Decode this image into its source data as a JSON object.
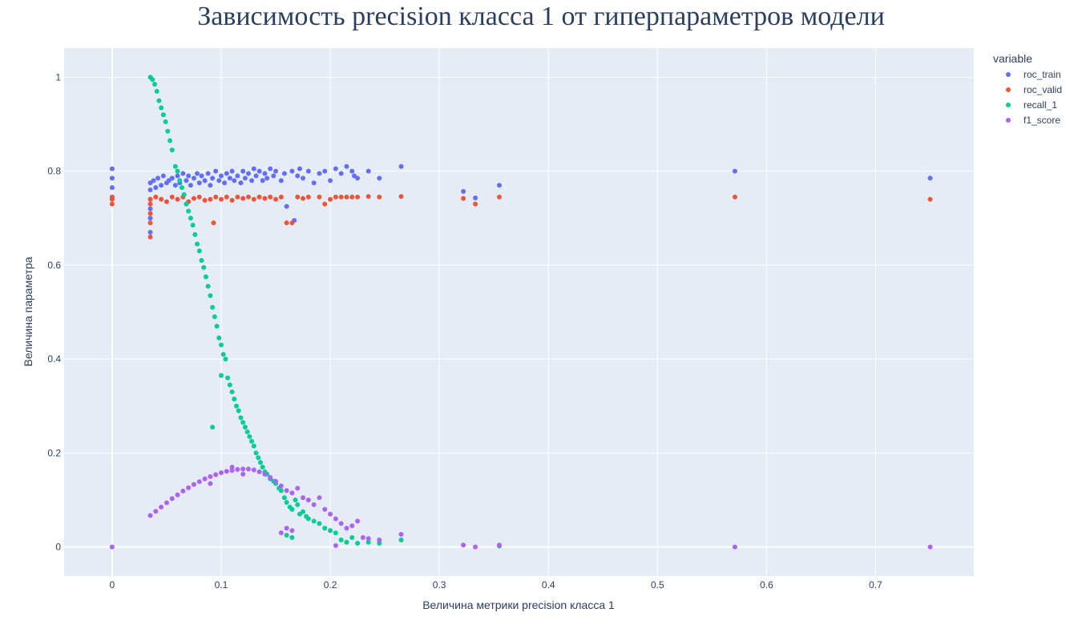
{
  "chart_data": {
    "type": "scatter",
    "title": "Зависимость precision класса 1 от гиперпараметров модели",
    "xlabel": "Величина метрики precision класса 1",
    "ylabel": "Величина параметра",
    "xlim": [
      -0.044,
      0.79
    ],
    "ylim": [
      -0.062,
      1.062
    ],
    "x_ticks": [
      0,
      0.1,
      0.2,
      0.3,
      0.4,
      0.5,
      0.6,
      0.7
    ],
    "x_tick_labels": [
      "0",
      "0.1",
      "0.2",
      "0.3",
      "0.4",
      "0.5",
      "0.6",
      "0.7"
    ],
    "y_ticks": [
      0,
      0.2,
      0.4,
      0.6,
      0.8,
      1
    ],
    "y_tick_labels": [
      "0",
      "0.2",
      "0.4",
      "0.6",
      "0.8",
      "1"
    ],
    "grid": true,
    "legend": {
      "title": "variable",
      "position": "right"
    },
    "series": [
      {
        "name": "roc_train",
        "color": "#636efa",
        "points": [
          [
            0,
            0.805
          ],
          [
            0,
            0.785
          ],
          [
            0,
            0.765
          ],
          [
            0,
            0.745
          ],
          [
            0.035,
            0.775
          ],
          [
            0.035,
            0.76
          ],
          [
            0.035,
            0.74
          ],
          [
            0.035,
            0.72
          ],
          [
            0.035,
            0.7
          ],
          [
            0.035,
            0.67
          ],
          [
            0.038,
            0.78
          ],
          [
            0.04,
            0.765
          ],
          [
            0.042,
            0.785
          ],
          [
            0.045,
            0.77
          ],
          [
            0.047,
            0.79
          ],
          [
            0.05,
            0.775
          ],
          [
            0.052,
            0.78
          ],
          [
            0.055,
            0.785
          ],
          [
            0.058,
            0.77
          ],
          [
            0.06,
            0.79
          ],
          [
            0.062,
            0.775
          ],
          [
            0.065,
            0.795
          ],
          [
            0.068,
            0.78
          ],
          [
            0.07,
            0.79
          ],
          [
            0.072,
            0.77
          ],
          [
            0.075,
            0.785
          ],
          [
            0.078,
            0.795
          ],
          [
            0.08,
            0.775
          ],
          [
            0.082,
            0.79
          ],
          [
            0.085,
            0.78
          ],
          [
            0.088,
            0.795
          ],
          [
            0.09,
            0.77
          ],
          [
            0.092,
            0.785
          ],
          [
            0.095,
            0.8
          ],
          [
            0.098,
            0.78
          ],
          [
            0.1,
            0.79
          ],
          [
            0.103,
            0.775
          ],
          [
            0.105,
            0.795
          ],
          [
            0.108,
            0.785
          ],
          [
            0.11,
            0.8
          ],
          [
            0.112,
            0.78
          ],
          [
            0.115,
            0.79
          ],
          [
            0.118,
            0.775
          ],
          [
            0.12,
            0.8
          ],
          [
            0.122,
            0.785
          ],
          [
            0.125,
            0.795
          ],
          [
            0.128,
            0.78
          ],
          [
            0.13,
            0.805
          ],
          [
            0.132,
            0.79
          ],
          [
            0.135,
            0.8
          ],
          [
            0.138,
            0.78
          ],
          [
            0.14,
            0.795
          ],
          [
            0.142,
            0.785
          ],
          [
            0.145,
            0.805
          ],
          [
            0.148,
            0.79
          ],
          [
            0.15,
            0.8
          ],
          [
            0.155,
            0.78
          ],
          [
            0.158,
            0.795
          ],
          [
            0.16,
            0.725
          ],
          [
            0.165,
            0.8
          ],
          [
            0.167,
            0.695
          ],
          [
            0.17,
            0.79
          ],
          [
            0.172,
            0.805
          ],
          [
            0.175,
            0.785
          ],
          [
            0.18,
            0.8
          ],
          [
            0.185,
            0.775
          ],
          [
            0.19,
            0.795
          ],
          [
            0.195,
            0.8
          ],
          [
            0.2,
            0.78
          ],
          [
            0.205,
            0.805
          ],
          [
            0.21,
            0.795
          ],
          [
            0.215,
            0.81
          ],
          [
            0.22,
            0.8
          ],
          [
            0.222,
            0.79
          ],
          [
            0.225,
            0.785
          ],
          [
            0.235,
            0.8
          ],
          [
            0.245,
            0.785
          ],
          [
            0.265,
            0.81
          ],
          [
            0.322,
            0.757
          ],
          [
            0.333,
            0.743
          ],
          [
            0.355,
            0.77
          ],
          [
            0.571,
            0.8
          ],
          [
            0.75,
            0.785
          ]
        ]
      },
      {
        "name": "roc_valid",
        "color": "#ef553b",
        "points": [
          [
            0,
            0.745
          ],
          [
            0,
            0.74
          ],
          [
            0,
            0.73
          ],
          [
            0.035,
            0.74
          ],
          [
            0.035,
            0.73
          ],
          [
            0.035,
            0.71
          ],
          [
            0.035,
            0.69
          ],
          [
            0.035,
            0.66
          ],
          [
            0.04,
            0.745
          ],
          [
            0.045,
            0.74
          ],
          [
            0.05,
            0.735
          ],
          [
            0.055,
            0.745
          ],
          [
            0.06,
            0.74
          ],
          [
            0.065,
            0.745
          ],
          [
            0.07,
            0.735
          ],
          [
            0.075,
            0.742
          ],
          [
            0.08,
            0.745
          ],
          [
            0.085,
            0.738
          ],
          [
            0.09,
            0.74
          ],
          [
            0.093,
            0.69
          ],
          [
            0.095,
            0.745
          ],
          [
            0.1,
            0.74
          ],
          [
            0.105,
            0.745
          ],
          [
            0.11,
            0.738
          ],
          [
            0.115,
            0.745
          ],
          [
            0.12,
            0.742
          ],
          [
            0.125,
            0.745
          ],
          [
            0.13,
            0.74
          ],
          [
            0.135,
            0.745
          ],
          [
            0.14,
            0.742
          ],
          [
            0.145,
            0.745
          ],
          [
            0.15,
            0.74
          ],
          [
            0.155,
            0.745
          ],
          [
            0.16,
            0.69
          ],
          [
            0.165,
            0.69
          ],
          [
            0.17,
            0.745
          ],
          [
            0.175,
            0.742
          ],
          [
            0.18,
            0.745
          ],
          [
            0.19,
            0.745
          ],
          [
            0.195,
            0.73
          ],
          [
            0.2,
            0.74
          ],
          [
            0.205,
            0.745
          ],
          [
            0.21,
            0.745
          ],
          [
            0.215,
            0.745
          ],
          [
            0.22,
            0.745
          ],
          [
            0.225,
            0.745
          ],
          [
            0.235,
            0.746
          ],
          [
            0.245,
            0.745
          ],
          [
            0.265,
            0.746
          ],
          [
            0.322,
            0.742
          ],
          [
            0.333,
            0.73
          ],
          [
            0.355,
            0.745
          ],
          [
            0.571,
            0.745
          ],
          [
            0.75,
            0.74
          ]
        ]
      },
      {
        "name": "recall_1",
        "color": "#00cc96",
        "points": [
          [
            0.035,
            1.0
          ],
          [
            0.037,
            0.995
          ],
          [
            0.039,
            0.985
          ],
          [
            0.041,
            0.97
          ],
          [
            0.043,
            0.95
          ],
          [
            0.045,
            0.935
          ],
          [
            0.047,
            0.92
          ],
          [
            0.049,
            0.905
          ],
          [
            0.051,
            0.885
          ],
          [
            0.053,
            0.865
          ],
          [
            0.055,
            0.845
          ],
          [
            0.058,
            0.81
          ],
          [
            0.06,
            0.8
          ],
          [
            0.062,
            0.78
          ],
          [
            0.064,
            0.765
          ],
          [
            0.066,
            0.75
          ],
          [
            0.068,
            0.73
          ],
          [
            0.07,
            0.715
          ],
          [
            0.072,
            0.7
          ],
          [
            0.074,
            0.685
          ],
          [
            0.076,
            0.665
          ],
          [
            0.078,
            0.645
          ],
          [
            0.08,
            0.63
          ],
          [
            0.082,
            0.61
          ],
          [
            0.084,
            0.595
          ],
          [
            0.086,
            0.575
          ],
          [
            0.088,
            0.555
          ],
          [
            0.09,
            0.535
          ],
          [
            0.092,
            0.51
          ],
          [
            0.094,
            0.49
          ],
          [
            0.096,
            0.47
          ],
          [
            0.098,
            0.445
          ],
          [
            0.1,
            0.43
          ],
          [
            0.102,
            0.41
          ],
          [
            0.104,
            0.4
          ],
          [
            0.1,
            0.365
          ],
          [
            0.092,
            0.255
          ],
          [
            0.106,
            0.36
          ],
          [
            0.108,
            0.345
          ],
          [
            0.11,
            0.33
          ],
          [
            0.112,
            0.315
          ],
          [
            0.114,
            0.3
          ],
          [
            0.116,
            0.29
          ],
          [
            0.118,
            0.275
          ],
          [
            0.12,
            0.265
          ],
          [
            0.122,
            0.255
          ],
          [
            0.124,
            0.245
          ],
          [
            0.126,
            0.235
          ],
          [
            0.128,
            0.225
          ],
          [
            0.13,
            0.215
          ],
          [
            0.132,
            0.2
          ],
          [
            0.134,
            0.19
          ],
          [
            0.136,
            0.18
          ],
          [
            0.138,
            0.17
          ],
          [
            0.14,
            0.16
          ],
          [
            0.142,
            0.155
          ],
          [
            0.145,
            0.145
          ],
          [
            0.148,
            0.14
          ],
          [
            0.15,
            0.135
          ],
          [
            0.153,
            0.125
          ],
          [
            0.155,
            0.12
          ],
          [
            0.158,
            0.105
          ],
          [
            0.16,
            0.095
          ],
          [
            0.163,
            0.085
          ],
          [
            0.165,
            0.08
          ],
          [
            0.168,
            0.1
          ],
          [
            0.17,
            0.09
          ],
          [
            0.172,
            0.07
          ],
          [
            0.175,
            0.075
          ],
          [
            0.178,
            0.065
          ],
          [
            0.18,
            0.06
          ],
          [
            0.185,
            0.055
          ],
          [
            0.19,
            0.05
          ],
          [
            0.195,
            0.04
          ],
          [
            0.2,
            0.035
          ],
          [
            0.205,
            0.03
          ],
          [
            0.21,
            0.015
          ],
          [
            0.215,
            0.01
          ],
          [
            0.22,
            0.02
          ],
          [
            0.225,
            0.008
          ],
          [
            0.235,
            0.01
          ],
          [
            0.245,
            0.008
          ],
          [
            0.265,
            0.015
          ],
          [
            0.16,
            0.025
          ],
          [
            0.165,
            0.02
          ],
          [
            0.355,
            0.002
          ]
        ]
      },
      {
        "name": "f1_score",
        "color": "#ab63fa",
        "points": [
          [
            0,
            0
          ],
          [
            0.035,
            0.067
          ],
          [
            0.04,
            0.076
          ],
          [
            0.045,
            0.085
          ],
          [
            0.05,
            0.094
          ],
          [
            0.055,
            0.103
          ],
          [
            0.06,
            0.111
          ],
          [
            0.065,
            0.119
          ],
          [
            0.07,
            0.126
          ],
          [
            0.075,
            0.133
          ],
          [
            0.08,
            0.139
          ],
          [
            0.085,
            0.145
          ],
          [
            0.09,
            0.15
          ],
          [
            0.095,
            0.154
          ],
          [
            0.1,
            0.158
          ],
          [
            0.105,
            0.161
          ],
          [
            0.11,
            0.163
          ],
          [
            0.115,
            0.165
          ],
          [
            0.12,
            0.166
          ],
          [
            0.125,
            0.166
          ],
          [
            0.13,
            0.164
          ],
          [
            0.135,
            0.16
          ],
          [
            0.14,
            0.155
          ],
          [
            0.145,
            0.148
          ],
          [
            0.15,
            0.14
          ],
          [
            0.155,
            0.13
          ],
          [
            0.16,
            0.12
          ],
          [
            0.165,
            0.115
          ],
          [
            0.17,
            0.125
          ],
          [
            0.175,
            0.105
          ],
          [
            0.18,
            0.1
          ],
          [
            0.185,
            0.09
          ],
          [
            0.19,
            0.105
          ],
          [
            0.195,
            0.08
          ],
          [
            0.2,
            0.07
          ],
          [
            0.205,
            0.06
          ],
          [
            0.21,
            0.05
          ],
          [
            0.215,
            0.04
          ],
          [
            0.22,
            0.045
          ],
          [
            0.225,
            0.055
          ],
          [
            0.23,
            0.02
          ],
          [
            0.235,
            0.018
          ],
          [
            0.245,
            0.015
          ],
          [
            0.265,
            0.027
          ],
          [
            0.16,
            0.04
          ],
          [
            0.165,
            0.035
          ],
          [
            0.155,
            0.03
          ],
          [
            0.205,
            0.003
          ],
          [
            0.11,
            0.17
          ],
          [
            0.12,
            0.155
          ],
          [
            0.09,
            0.135
          ],
          [
            0.322,
            0.004
          ],
          [
            0.333,
            0.0
          ],
          [
            0.355,
            0.004
          ],
          [
            0.571,
            0.0
          ],
          [
            0.75,
            0.0
          ]
        ]
      }
    ]
  }
}
